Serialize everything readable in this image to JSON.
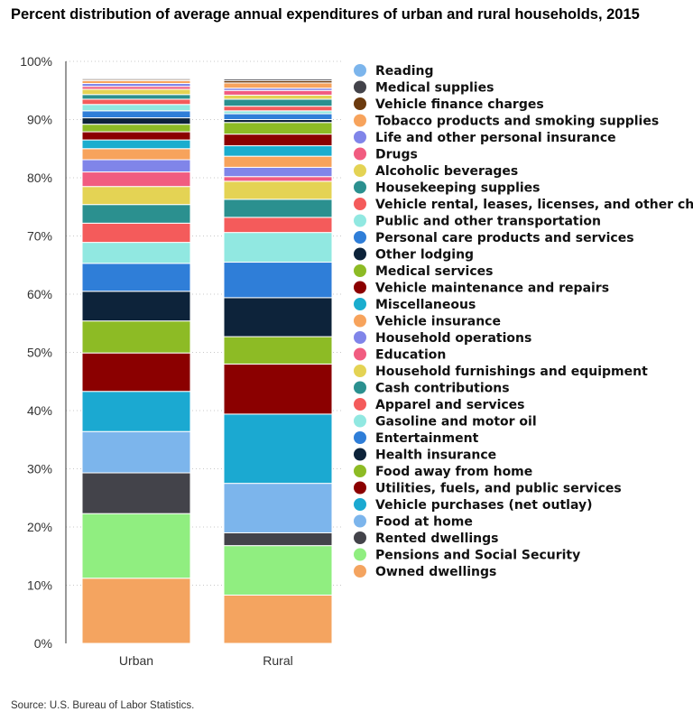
{
  "title": "Percent distribution of average annual expenditures of urban and rural households, 2015",
  "source": "Source: U.S. Bureau of Labor Statistics.",
  "chart_data": {
    "type": "bar",
    "stacked": true,
    "title": "Percent distribution of average annual expenditures of urban and rural households, 2015",
    "xlabel": "",
    "ylabel": "",
    "categories": [
      "Urban",
      "Rural"
    ],
    "ylim": [
      0,
      100
    ],
    "yticks": [
      "0%",
      "10%",
      "20%",
      "30%",
      "40%",
      "50%",
      "60%",
      "70%",
      "80%",
      "90%",
      "100%"
    ],
    "grid": true,
    "legend_position": "right",
    "series": [
      {
        "name": "Owned dwellings",
        "color": "#f4a460",
        "values": [
          11.2,
          8.3
        ]
      },
      {
        "name": "Pensions and Social Security",
        "color": "#90ee80",
        "values": [
          11.1,
          8.5
        ]
      },
      {
        "name": "Rented dwellings",
        "color": "#43434a",
        "values": [
          7.0,
          2.2
        ]
      },
      {
        "name": "Food at home",
        "color": "#7cb5ec",
        "values": [
          7.1,
          8.5
        ]
      },
      {
        "name": "Vehicle purchases (net outlay)",
        "color": "#1ba9d1",
        "values": [
          6.9,
          11.9
        ]
      },
      {
        "name": "Utilities, fuels, and public services",
        "color": "#8b0000",
        "values": [
          6.6,
          8.6
        ]
      },
      {
        "name": "Food away from home",
        "color": "#8dbb25",
        "values": [
          5.5,
          4.7
        ]
      },
      {
        "name": "Health insurance",
        "color": "#0d233a",
        "values": [
          5.1,
          6.7
        ]
      },
      {
        "name": "Entertainment",
        "color": "#2f7ed8",
        "values": [
          4.8,
          6.1
        ]
      },
      {
        "name": "Gasoline and motor oil",
        "color": "#91e8e1",
        "values": [
          3.6,
          5.1
        ]
      },
      {
        "name": "Apparel and services",
        "color": "#f45b5b",
        "values": [
          3.3,
          2.6
        ]
      },
      {
        "name": "Cash contributions",
        "color": "#2b908f",
        "values": [
          3.2,
          3.1
        ]
      },
      {
        "name": "Household furnishings and equipment",
        "color": "#e4d354",
        "values": [
          3.1,
          3.1
        ]
      },
      {
        "name": "Education",
        "color": "#f15c80",
        "values": [
          2.5,
          0.8
        ]
      },
      {
        "name": "Household operations",
        "color": "#8085e9",
        "values": [
          2.1,
          1.6
        ]
      },
      {
        "name": "Vehicle insurance",
        "color": "#f7a35c",
        "values": [
          1.9,
          1.9
        ]
      },
      {
        "name": "Miscellaneous",
        "color": "#1aadce",
        "values": [
          1.5,
          1.8
        ]
      },
      {
        "name": "Vehicle maintenance and repairs",
        "color": "#8b0000",
        "values": [
          1.4,
          2.0
        ]
      },
      {
        "name": "Medical services",
        "color": "#8dbb25",
        "values": [
          1.3,
          2.0
        ]
      },
      {
        "name": "Other lodging",
        "color": "#0d233a",
        "values": [
          1.1,
          0.5
        ]
      },
      {
        "name": "Personal care products and services",
        "color": "#2f7ed8",
        "values": [
          1.2,
          1.0
        ]
      },
      {
        "name": "Public and other transportation",
        "color": "#91e8e1",
        "values": [
          1.1,
          0.5
        ]
      },
      {
        "name": "Vehicle rental, leases, licenses, and other charges",
        "color": "#f45b5b",
        "values": [
          0.9,
          0.8
        ]
      },
      {
        "name": "Housekeeping supplies",
        "color": "#2b908f",
        "values": [
          0.8,
          1.2
        ]
      },
      {
        "name": "Alcoholic beverages",
        "color": "#e4d354",
        "values": [
          0.9,
          0.7
        ]
      },
      {
        "name": "Drugs",
        "color": "#f15c80",
        "values": [
          0.5,
          0.8
        ]
      },
      {
        "name": "Life and other personal insurance",
        "color": "#8085e9",
        "values": [
          0.5,
          0.4
        ]
      },
      {
        "name": "Tobacco products and smoking supplies",
        "color": "#f7a35c",
        "values": [
          0.5,
          0.9
        ]
      },
      {
        "name": "Vehicle finance charges",
        "color": "#6b3a0e",
        "values": [
          0.2,
          0.4
        ]
      },
      {
        "name": "Medical supplies",
        "color": "#43434a",
        "values": [
          0.2,
          0.3
        ]
      },
      {
        "name": "Reading",
        "color": "#7cb5ec",
        "values": [
          0.1,
          0.1
        ]
      }
    ]
  }
}
